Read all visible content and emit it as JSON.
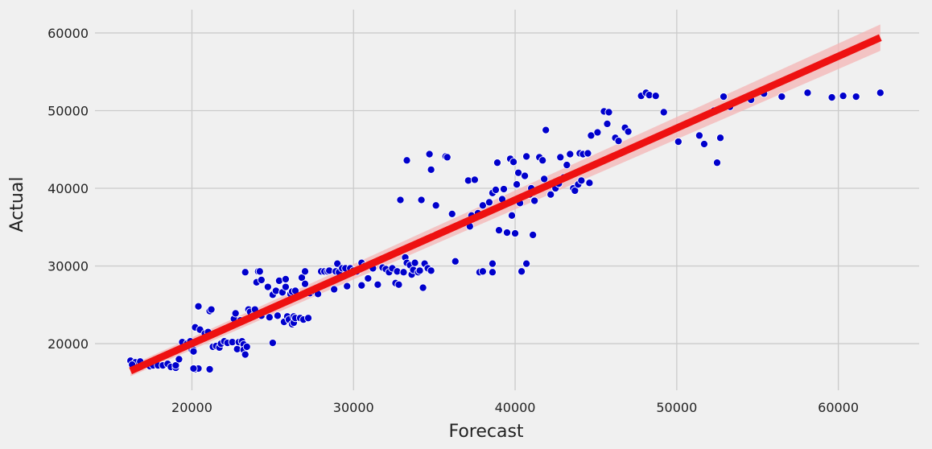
{
  "chart_data": {
    "type": "scatter",
    "title": "",
    "xlabel": "Forecast",
    "ylabel": "Actual",
    "xlim": [
      14000,
      65000
    ],
    "ylim": [
      14000,
      63000
    ],
    "xticks": [
      20000,
      30000,
      40000,
      50000,
      60000
    ],
    "yticks": [
      20000,
      30000,
      40000,
      50000,
      60000
    ],
    "xtick_labels": [
      "20000",
      "30000",
      "40000",
      "50000",
      "60000"
    ],
    "ytick_labels": [
      "20000",
      "30000",
      "40000",
      "50000",
      "60000"
    ],
    "grid": true,
    "legend": "none",
    "colors": {
      "background": "#f0f0f0",
      "grid": "#cbcbcb",
      "points": "#0000cc",
      "fit_line": "#ee1111",
      "ci_band": "#f4b6b6"
    },
    "series": [
      {
        "kind": "scatter",
        "points": [
          [
            16200,
            17800
          ],
          [
            16500,
            17600
          ],
          [
            16300,
            17300
          ],
          [
            16800,
            17700
          ],
          [
            17000,
            17200
          ],
          [
            17400,
            17100
          ],
          [
            17600,
            17200
          ],
          [
            17900,
            17200
          ],
          [
            18200,
            17200
          ],
          [
            18500,
            17400
          ],
          [
            18700,
            17000
          ],
          [
            19000,
            16900
          ],
          [
            19000,
            17200
          ],
          [
            19200,
            18000
          ],
          [
            19400,
            20200
          ],
          [
            19700,
            20000
          ],
          [
            19900,
            20300
          ],
          [
            20000,
            19200
          ],
          [
            20100,
            19200
          ],
          [
            20100,
            19000
          ],
          [
            20200,
            16700
          ],
          [
            20400,
            16800
          ],
          [
            20100,
            16800
          ],
          [
            20200,
            22100
          ],
          [
            20500,
            21800
          ],
          [
            20400,
            24800
          ],
          [
            20800,
            21300
          ],
          [
            21000,
            21500
          ],
          [
            21100,
            24200
          ],
          [
            21200,
            24400
          ],
          [
            21100,
            16700
          ],
          [
            21300,
            19600
          ],
          [
            21500,
            19700
          ],
          [
            21700,
            19500
          ],
          [
            21800,
            20000
          ],
          [
            22000,
            20300
          ],
          [
            22200,
            20100
          ],
          [
            22500,
            20200
          ],
          [
            22600,
            23200
          ],
          [
            22700,
            23900
          ],
          [
            22800,
            19300
          ],
          [
            22900,
            20200
          ],
          [
            23000,
            23000
          ],
          [
            23100,
            20300
          ],
          [
            23200,
            19900
          ],
          [
            23200,
            19200
          ],
          [
            23300,
            18600
          ],
          [
            23300,
            29200
          ],
          [
            23400,
            19600
          ],
          [
            23500,
            24400
          ],
          [
            23600,
            24100
          ],
          [
            23800,
            23600
          ],
          [
            23900,
            24400
          ],
          [
            24000,
            27900
          ],
          [
            24100,
            29300
          ],
          [
            24200,
            29300
          ],
          [
            24300,
            28200
          ],
          [
            24300,
            23600
          ],
          [
            24500,
            24100
          ],
          [
            24700,
            27300
          ],
          [
            24800,
            23400
          ],
          [
            25000,
            20100
          ],
          [
            25000,
            26300
          ],
          [
            25200,
            26800
          ],
          [
            25300,
            23600
          ],
          [
            25400,
            28100
          ],
          [
            25600,
            26600
          ],
          [
            25700,
            22800
          ],
          [
            25800,
            27300
          ],
          [
            25800,
            28300
          ],
          [
            25900,
            23500
          ],
          [
            26000,
            23100
          ],
          [
            26100,
            26400
          ],
          [
            26200,
            22500
          ],
          [
            26200,
            26700
          ],
          [
            26300,
            22700
          ],
          [
            26300,
            23500
          ],
          [
            26400,
            23300
          ],
          [
            26400,
            26800
          ],
          [
            26700,
            23300
          ],
          [
            26800,
            28500
          ],
          [
            26900,
            23100
          ],
          [
            27000,
            29300
          ],
          [
            27000,
            27700
          ],
          [
            27200,
            23300
          ],
          [
            27300,
            26500
          ],
          [
            27500,
            26800
          ],
          [
            27800,
            26400
          ],
          [
            28000,
            29300
          ],
          [
            28200,
            29300
          ],
          [
            28400,
            29300
          ],
          [
            28500,
            29400
          ],
          [
            28800,
            27000
          ],
          [
            28900,
            29300
          ],
          [
            29000,
            30300
          ],
          [
            29100,
            29200
          ],
          [
            29300,
            29700
          ],
          [
            29500,
            29700
          ],
          [
            29600,
            27400
          ],
          [
            29800,
            29700
          ],
          [
            30000,
            29400
          ],
          [
            30200,
            29300
          ],
          [
            30500,
            30400
          ],
          [
            30500,
            27500
          ],
          [
            30700,
            30000
          ],
          [
            30900,
            28400
          ],
          [
            31200,
            29700
          ],
          [
            31500,
            27600
          ],
          [
            31800,
            29800
          ],
          [
            32000,
            29600
          ],
          [
            32200,
            29200
          ],
          [
            32400,
            29700
          ],
          [
            32600,
            27800
          ],
          [
            32700,
            29300
          ],
          [
            32800,
            27600
          ],
          [
            32900,
            38500
          ],
          [
            33100,
            29200
          ],
          [
            33200,
            31100
          ],
          [
            33300,
            30400
          ],
          [
            33300,
            43600
          ],
          [
            33500,
            30100
          ],
          [
            33600,
            28900
          ],
          [
            33700,
            29500
          ],
          [
            33800,
            30400
          ],
          [
            34000,
            29200
          ],
          [
            34100,
            29400
          ],
          [
            34200,
            38500
          ],
          [
            34300,
            27200
          ],
          [
            34400,
            30300
          ],
          [
            34600,
            29700
          ],
          [
            34700,
            44400
          ],
          [
            34800,
            42400
          ],
          [
            34800,
            29400
          ],
          [
            35000,
            33900
          ],
          [
            35100,
            37800
          ],
          [
            35700,
            44100
          ],
          [
            35800,
            44000
          ],
          [
            36100,
            36700
          ],
          [
            36300,
            30600
          ],
          [
            37100,
            41000
          ],
          [
            37200,
            35100
          ],
          [
            37300,
            36500
          ],
          [
            37500,
            41100
          ],
          [
            37700,
            36800
          ],
          [
            37800,
            29200
          ],
          [
            38000,
            29300
          ],
          [
            38000,
            37800
          ],
          [
            38400,
            38200
          ],
          [
            38600,
            39400
          ],
          [
            38600,
            30300
          ],
          [
            38600,
            29200
          ],
          [
            38800,
            39800
          ],
          [
            38900,
            43300
          ],
          [
            39000,
            34600
          ],
          [
            39200,
            38600
          ],
          [
            39300,
            39900
          ],
          [
            39500,
            34300
          ],
          [
            39700,
            43800
          ],
          [
            39800,
            36500
          ],
          [
            39900,
            43400
          ],
          [
            40000,
            34200
          ],
          [
            40100,
            40500
          ],
          [
            40200,
            42000
          ],
          [
            40300,
            38100
          ],
          [
            40400,
            29300
          ],
          [
            40600,
            41600
          ],
          [
            40700,
            44100
          ],
          [
            40700,
            30300
          ],
          [
            40900,
            39200
          ],
          [
            41000,
            40000
          ],
          [
            41100,
            34000
          ],
          [
            41200,
            38400
          ],
          [
            41500,
            44000
          ],
          [
            41700,
            43600
          ],
          [
            41800,
            41200
          ],
          [
            41900,
            47500
          ],
          [
            42200,
            39200
          ],
          [
            42400,
            40700
          ],
          [
            42500,
            40000
          ],
          [
            42700,
            40600
          ],
          [
            42800,
            44000
          ],
          [
            43000,
            41400
          ],
          [
            43200,
            43000
          ],
          [
            43400,
            44400
          ],
          [
            43600,
            40000
          ],
          [
            43700,
            39700
          ],
          [
            43900,
            40500
          ],
          [
            44000,
            44500
          ],
          [
            44100,
            41000
          ],
          [
            44200,
            44400
          ],
          [
            44500,
            44500
          ],
          [
            44600,
            40700
          ],
          [
            44700,
            46800
          ],
          [
            45100,
            47200
          ],
          [
            45500,
            49900
          ],
          [
            45700,
            48300
          ],
          [
            45800,
            49800
          ],
          [
            46200,
            46500
          ],
          [
            46400,
            46100
          ],
          [
            46800,
            47800
          ],
          [
            47000,
            47300
          ],
          [
            47800,
            51900
          ],
          [
            48100,
            52300
          ],
          [
            48300,
            52000
          ],
          [
            48700,
            51900
          ],
          [
            49200,
            49800
          ],
          [
            50100,
            46000
          ],
          [
            51400,
            46800
          ],
          [
            51700,
            45700
          ],
          [
            52300,
            50000
          ],
          [
            52500,
            43300
          ],
          [
            52700,
            46500
          ],
          [
            52900,
            51800
          ],
          [
            53300,
            50500
          ],
          [
            54600,
            51400
          ],
          [
            55400,
            52200
          ],
          [
            56500,
            51800
          ],
          [
            58100,
            52300
          ],
          [
            59600,
            51700
          ],
          [
            60300,
            51900
          ],
          [
            61100,
            51800
          ],
          [
            62600,
            52300
          ]
        ]
      },
      {
        "kind": "regression",
        "x": [
          16200,
          62600
        ],
        "y": [
          16500,
          59400
        ],
        "ci_halfwidth_left": 700,
        "ci_halfwidth_right": 1700
      }
    ]
  }
}
